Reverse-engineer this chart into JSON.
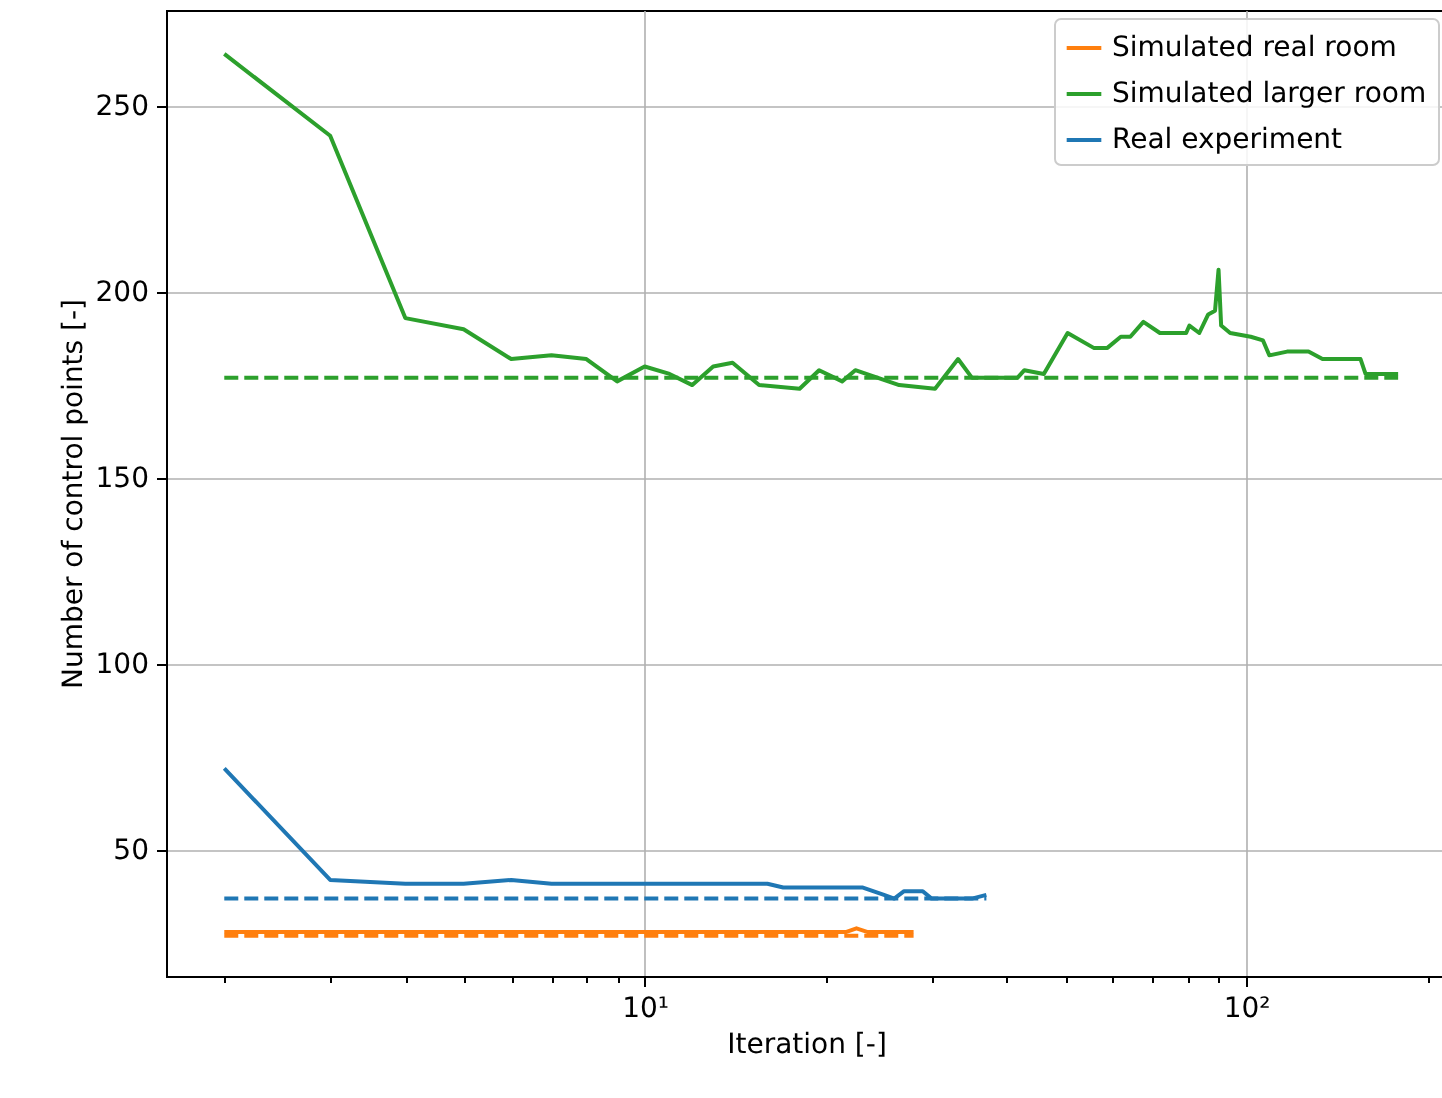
{
  "chart_data": {
    "type": "line",
    "xlabel": "Iteration [-]",
    "ylabel": "Number of control points [-]",
    "log": "x",
    "grid": true,
    "legend": "top right",
    "xlim": [
      1.6,
      215
    ],
    "ylim": [
      16.2,
      275.8
    ],
    "xticks": [
      {
        "value": 2,
        "label": null
      },
      {
        "value": 3,
        "label": null
      },
      {
        "value": 4,
        "label": null
      },
      {
        "value": 5,
        "label": null
      },
      {
        "value": 6,
        "label": null
      },
      {
        "value": 7,
        "label": null
      },
      {
        "value": 8,
        "label": null
      },
      {
        "value": 9,
        "label": null
      },
      {
        "value": 10,
        "label": "10¹"
      },
      {
        "value": 20,
        "label": null
      },
      {
        "value": 30,
        "label": null
      },
      {
        "value": 40,
        "label": null
      },
      {
        "value": 50,
        "label": null
      },
      {
        "value": 60,
        "label": null
      },
      {
        "value": 70,
        "label": null
      },
      {
        "value": 80,
        "label": null
      },
      {
        "value": 90,
        "label": null
      },
      {
        "value": 100,
        "label": "10²"
      },
      {
        "value": 200,
        "label": null
      }
    ],
    "yticks": [
      50,
      100,
      150,
      200,
      250
    ],
    "series": [
      {
        "name": "Simulated real room",
        "color": "#ff7f0e",
        "line_style": "solid",
        "x": [
          2,
          10,
          21.6,
          22.5,
          23.5,
          28
        ],
        "values": [
          28,
          28,
          28,
          29,
          28,
          28
        ]
      },
      {
        "name": "Simulated larger room",
        "color": "#2ca02c",
        "line_style": "solid",
        "x": [
          2,
          3,
          4,
          5,
          6,
          7,
          8,
          9,
          10,
          11,
          12,
          13,
          14,
          15.5,
          18.1,
          19.5,
          21.3,
          22.4,
          26.5,
          30.4,
          33.2,
          35,
          41.7,
          42.8,
          46.1,
          50.5,
          55.8,
          58.8,
          61.9,
          64.2,
          67.5,
          71.9,
          79.5,
          80.5,
          83.6,
          86.5,
          88.8,
          90,
          90.9,
          94.1,
          101.8,
          106.7,
          109.3,
          117,
          127,
          134,
          155,
          158,
          179
        ],
        "values": [
          264,
          242,
          193,
          190,
          182,
          183,
          182,
          176,
          180,
          178,
          175,
          180,
          181,
          175,
          174,
          179,
          176,
          179,
          175,
          174,
          182,
          177,
          177,
          179,
          178,
          189,
          185,
          185,
          188,
          188,
          192,
          189,
          189,
          191,
          189,
          194,
          195,
          206,
          191,
          189,
          188,
          187,
          183,
          184,
          184,
          182,
          182,
          178,
          178
        ]
      },
      {
        "name": "Real experiment",
        "color": "#1f77b4",
        "line_style": "solid",
        "x": [
          2,
          3,
          4,
          5,
          6,
          7,
          10,
          16,
          17,
          23,
          25,
          26,
          27,
          29,
          30,
          35,
          37
        ],
        "values": [
          72,
          42,
          41,
          41,
          42,
          41,
          41,
          41,
          40,
          40,
          38,
          37,
          39,
          39,
          37,
          37,
          38
        ]
      },
      {
        "color": "#ff7f0e",
        "line_style": "dashed",
        "x": [
          2,
          28
        ],
        "values": [
          27,
          27
        ]
      },
      {
        "color": "#2ca02c",
        "line_style": "dashed",
        "x": [
          2,
          179
        ],
        "values": [
          177,
          177
        ]
      },
      {
        "color": "#1f77b4",
        "line_style": "dashed",
        "x": [
          2,
          37
        ],
        "values": [
          37,
          37
        ]
      }
    ]
  }
}
